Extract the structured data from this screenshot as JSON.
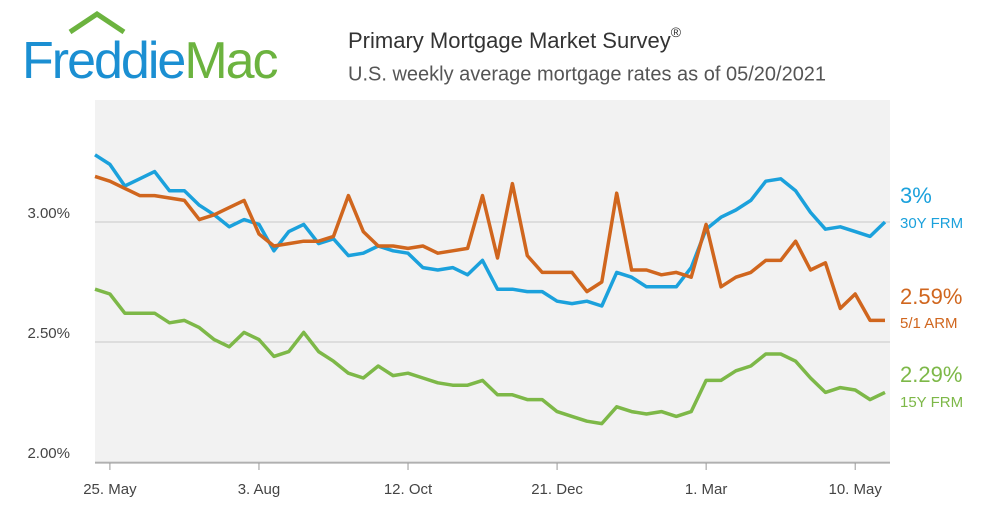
{
  "logo": {
    "first": "Freddie",
    "second": "Mac"
  },
  "chart_data": {
    "type": "line",
    "title": "Primary Mortgage Market Survey",
    "title_mark": "®",
    "subtitle": "U.S. weekly average mortgage rates as of 05/20/2021",
    "categories": [
      null,
      "25. May",
      null,
      null,
      null,
      null,
      null,
      null,
      null,
      null,
      null,
      "3. Aug",
      null,
      null,
      null,
      null,
      null,
      null,
      null,
      null,
      null,
      "12. Oct",
      null,
      null,
      null,
      null,
      null,
      null,
      null,
      null,
      null,
      "21. Dec",
      null,
      null,
      null,
      null,
      null,
      null,
      null,
      null,
      null,
      "1. Mar",
      null,
      null,
      null,
      null,
      null,
      null,
      null,
      null,
      null,
      "10. May",
      null,
      null
    ],
    "ylim": [
      2,
      3.5
    ],
    "yticks": [
      {
        "value": 2,
        "label": "2.00%"
      },
      {
        "value": 2.5,
        "label": "2.50%"
      },
      {
        "value": 3,
        "label": "3.00%"
      }
    ],
    "grid": true,
    "series": [
      {
        "name": "30Y FRM",
        "color": "#1ba1dc",
        "last_label": "3%",
        "values": [
          3.28,
          3.24,
          3.15,
          3.18,
          3.21,
          3.13,
          3.13,
          3.07,
          3.03,
          2.98,
          3.01,
          2.99,
          2.88,
          2.96,
          2.99,
          2.91,
          2.93,
          2.86,
          2.87,
          2.9,
          2.88,
          2.87,
          2.81,
          2.8,
          2.81,
          2.78,
          2.84,
          2.72,
          2.72,
          2.71,
          2.71,
          2.67,
          2.66,
          2.67,
          2.65,
          2.79,
          2.77,
          2.73,
          2.73,
          2.73,
          2.81,
          2.97,
          3.02,
          3.05,
          3.09,
          3.17,
          3.18,
          3.13,
          3.04,
          2.97,
          2.98,
          2.96,
          2.94,
          3.0
        ]
      },
      {
        "name": "5/1 ARM",
        "color": "#d0661e",
        "last_label": "2.59%",
        "values": [
          3.19,
          3.17,
          3.14,
          3.11,
          3.11,
          3.1,
          3.09,
          3.01,
          3.03,
          3.06,
          3.09,
          2.95,
          2.9,
          2.91,
          2.92,
          2.92,
          2.94,
          3.11,
          2.96,
          2.9,
          2.9,
          2.89,
          2.9,
          2.87,
          2.88,
          2.89,
          3.11,
          2.85,
          3.16,
          2.86,
          2.79,
          2.79,
          2.79,
          2.71,
          2.75,
          3.12,
          2.8,
          2.8,
          2.78,
          2.79,
          2.77,
          2.99,
          2.73,
          2.77,
          2.79,
          2.84,
          2.84,
          2.92,
          2.8,
          2.83,
          2.64,
          2.7,
          2.59,
          2.59
        ]
      },
      {
        "name": "15Y FRM",
        "color": "#7db848",
        "last_label": "2.29%",
        "values": [
          2.72,
          2.7,
          2.62,
          2.62,
          2.62,
          2.58,
          2.59,
          2.56,
          2.51,
          2.48,
          2.54,
          2.51,
          2.44,
          2.46,
          2.54,
          2.46,
          2.42,
          2.37,
          2.35,
          2.4,
          2.36,
          2.37,
          2.35,
          2.33,
          2.32,
          2.32,
          2.34,
          2.28,
          2.28,
          2.26,
          2.26,
          2.21,
          2.19,
          2.17,
          2.16,
          2.23,
          2.21,
          2.2,
          2.21,
          2.19,
          2.21,
          2.34,
          2.34,
          2.38,
          2.4,
          2.45,
          2.45,
          2.42,
          2.35,
          2.29,
          2.31,
          2.3,
          2.26,
          2.29
        ]
      }
    ]
  }
}
